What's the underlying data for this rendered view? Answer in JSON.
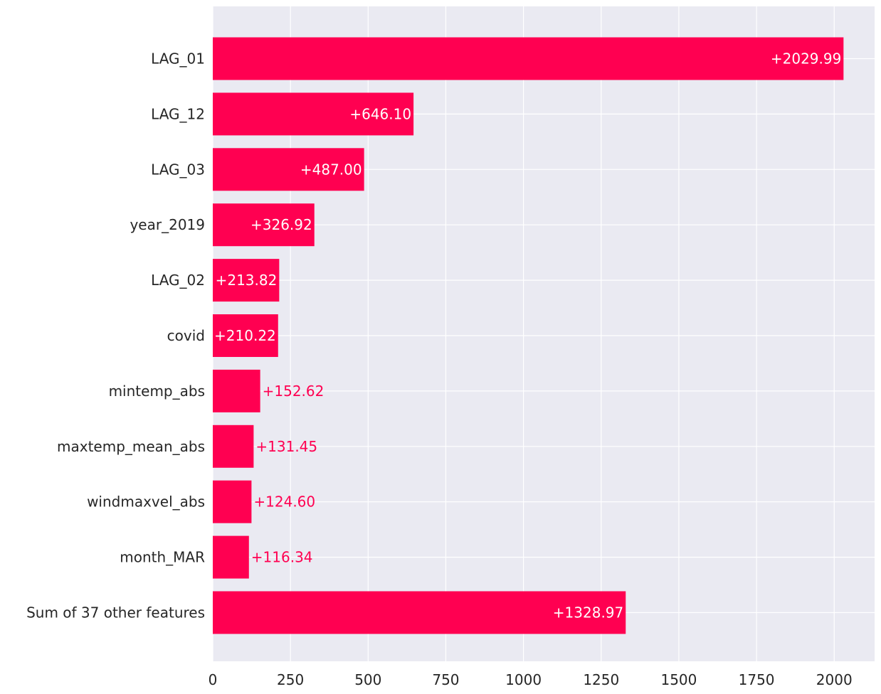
{
  "chart_data": {
    "type": "bar",
    "orientation": "horizontal",
    "categories": [
      "LAG_01",
      "LAG_12",
      "LAG_03",
      "year_2019",
      "LAG_02",
      "covid",
      "mintemp_abs",
      "maxtemp_mean_abs",
      "windmaxvel_abs",
      "month_MAR",
      "Sum of 37 other features"
    ],
    "values": [
      2029.99,
      646.1,
      487.0,
      326.92,
      213.82,
      210.22,
      152.62,
      131.45,
      124.6,
      116.34,
      1328.97
    ],
    "value_labels": [
      "+2029.99",
      "+646.10",
      "+487.00",
      "+326.92",
      "+213.82",
      "+210.22",
      "+152.62",
      "+131.45",
      "+124.60",
      "+116.34",
      "+1328.97"
    ],
    "xlim": [
      0,
      2130
    ],
    "xticks": [
      0,
      250,
      500,
      750,
      1000,
      1250,
      1500,
      1750,
      2000
    ],
    "xtick_labels": [
      "0",
      "250",
      "500",
      "750",
      "1000",
      "1250",
      "1500",
      "1750",
      "2000"
    ],
    "title": "",
    "xlabel": "",
    "ylabel": "",
    "grid": true,
    "colors": {
      "bar": "#ff0051",
      "background": "#eaeaf2",
      "grid": "#ffffff",
      "label_inside": "#ffffff",
      "label_outside": "#ff0051"
    }
  }
}
